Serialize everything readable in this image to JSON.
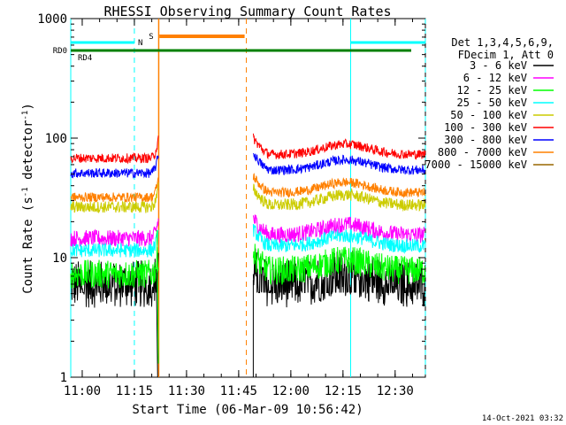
{
  "chart_data": {
    "type": "line",
    "title": "RHESSI Observing Summary Count Rates",
    "xlabel": "Start Time (06-Mar-09 10:56:42)",
    "ylabel_main": "Count Rate (s",
    "ylabel_sup1": "-1",
    "ylabel_mid": " detector",
    "ylabel_sup2": "-1",
    "ylabel_end": ")",
    "y_scale": "log",
    "ylim": [
      1,
      1000
    ],
    "xlim_minutes": [
      0,
      102
    ],
    "x_ticks": [
      {
        "min": 3.3,
        "label": "11:00"
      },
      {
        "min": 18.3,
        "label": "11:15"
      },
      {
        "min": 33.3,
        "label": "11:30"
      },
      {
        "min": 48.3,
        "label": "11:45"
      },
      {
        "min": 63.3,
        "label": "12:00"
      },
      {
        "min": 78.3,
        "label": "12:15"
      },
      {
        "min": 93.3,
        "label": "12:30"
      }
    ],
    "y_ticks": [
      {
        "value": 1,
        "label": "1"
      },
      {
        "value": 10,
        "label": "10"
      },
      {
        "value": 100,
        "label": "100"
      },
      {
        "value": 1000,
        "label": "1000"
      }
    ],
    "legend_header": [
      "Det 1,3,4,5,6,9,",
      "FDecim 1, Att 0"
    ],
    "segments": [
      [
        0,
        25.3
      ],
      [
        52.5,
        102
      ]
    ],
    "series": [
      {
        "name": "3 - 6 keV",
        "color": "#000000",
        "level1": 6,
        "level2": 6,
        "noise": 0.2
      },
      {
        "name": "6 - 12 keV",
        "color": "#ff00ff",
        "level1": 14.5,
        "level2": 15.5,
        "noise": 0.07
      },
      {
        "name": "12 - 25 keV",
        "color": "#00ff00",
        "level1": 7.3,
        "level2": 7.8,
        "noise": 0.12
      },
      {
        "name": "25 - 50 keV",
        "color": "#00ffff",
        "level1": 11.5,
        "level2": 12.5,
        "noise": 0.06
      },
      {
        "name": "50 - 100 keV",
        "color": "#cccc00",
        "level1": 26.5,
        "level2": 27.5,
        "noise": 0.05
      },
      {
        "name": "100 - 300 keV",
        "color": "#ff0000",
        "level1": 68,
        "level2": 73,
        "noise": 0.04
      },
      {
        "name": "300 - 800 keV",
        "color": "#0000ff",
        "level1": 51,
        "level2": 54,
        "noise": 0.04
      },
      {
        "name": "800 - 7000 keV",
        "color": "#ff8000",
        "level1": 32,
        "level2": 35,
        "noise": 0.04
      },
      {
        "name": "7000 - 15000 keV",
        "color": "#996600",
        "level1": 0,
        "level2": 0,
        "noise": 0
      }
    ],
    "flags": {
      "rd0_label": "RD0",
      "rd4_label": "RD4",
      "n_label": "N",
      "s_label": "S",
      "cyan_color": "#00ffff",
      "green_color": "#008000",
      "orange_color": "#ff8000",
      "night_intervals": [
        [
          0,
          18.3
        ],
        [
          80.5,
          102
        ]
      ],
      "saa_interval": [
        25.5,
        50
      ]
    },
    "vlines": {
      "cyan_solid": [
        0,
        80.5
      ],
      "cyan_dashed": [
        18.3,
        102
      ],
      "orange_solid": [
        25.3
      ],
      "orange_dashed": [
        50.5
      ]
    }
  },
  "footer_date": "14-Oct-2021 03:32"
}
